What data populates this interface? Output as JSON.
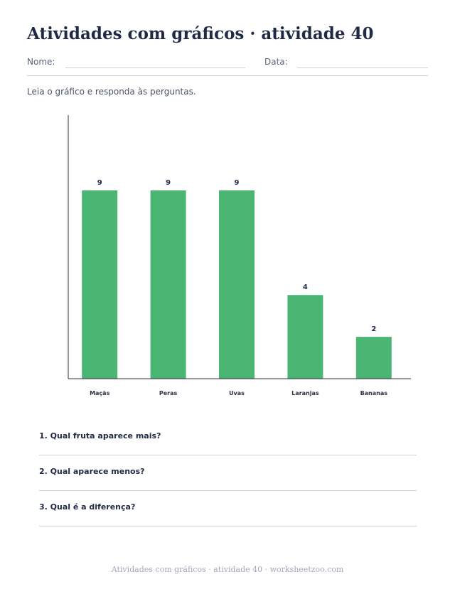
{
  "header": {
    "title": "Atividades com gráficos · atividade 40",
    "name_label": "Nome:",
    "date_label": "Data:"
  },
  "instructions": "Leia o gráfico e responda às perguntas.",
  "chart_data": {
    "type": "bar",
    "title": "",
    "xlabel": "",
    "ylabel": "",
    "categories": [
      "Maçãs",
      "Peras",
      "Uvas",
      "Laranjas",
      "Bananas"
    ],
    "values": [
      9,
      9,
      9,
      4,
      2
    ],
    "ylim": [
      0,
      12.6
    ],
    "grid": false,
    "bar_color": "#4bb673",
    "data_labels": true
  },
  "questions": [
    {
      "label": "1. Qual fruta aparece mais?"
    },
    {
      "label": "2. Qual aparece menos?"
    },
    {
      "label": "3. Qual é a diferença?"
    }
  ],
  "footer": "Atividades com gráficos · atividade 40 · worksheetzoo.com"
}
